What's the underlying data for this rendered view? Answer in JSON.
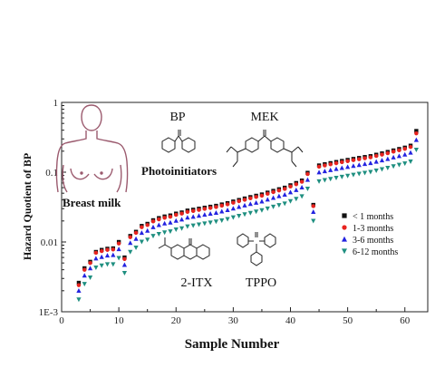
{
  "chart_data": {
    "type": "scatter",
    "xlabel": "Sample Number",
    "ylabel": "Hazard Quotient of BP",
    "xlim": [
      0,
      64
    ],
    "ylim": [
      0.001,
      1
    ],
    "yscale": "log",
    "x_ticks": [
      0,
      10,
      20,
      30,
      40,
      50,
      60
    ],
    "x_tick_labels": [
      "0",
      "10",
      "20",
      "30",
      "40",
      "50",
      "60"
    ],
    "y_ticks": [
      0.001,
      0.01,
      0.1,
      1
    ],
    "y_tick_labels": [
      "1E-3",
      "0.01",
      "0.1",
      "1"
    ],
    "legend_position": "right-middle",
    "x": [
      3,
      4,
      5,
      6,
      7,
      8,
      9,
      10,
      11,
      12,
      13,
      14,
      15,
      16,
      17,
      18,
      19,
      20,
      21,
      22,
      23,
      24,
      25,
      26,
      27,
      28,
      29,
      30,
      31,
      32,
      33,
      34,
      35,
      36,
      37,
      38,
      39,
      40,
      41,
      42,
      43,
      44,
      45,
      46,
      47,
      48,
      49,
      50,
      51,
      52,
      53,
      54,
      55,
      56,
      57,
      58,
      59,
      60,
      61,
      62
    ],
    "series": [
      {
        "name": "< 1 months",
        "marker": "square",
        "color": "#111111",
        "values": [
          0.0026,
          0.0042,
          0.0052,
          0.0072,
          0.0077,
          0.008,
          0.0081,
          0.01,
          0.006,
          0.0122,
          0.014,
          0.017,
          0.0182,
          0.0205,
          0.022,
          0.0232,
          0.024,
          0.0255,
          0.0265,
          0.0282,
          0.029,
          0.03,
          0.031,
          0.032,
          0.033,
          0.0345,
          0.036,
          0.038,
          0.04,
          0.042,
          0.044,
          0.046,
          0.048,
          0.051,
          0.054,
          0.057,
          0.06,
          0.065,
          0.07,
          0.076,
          0.098,
          0.034,
          0.125,
          0.13,
          0.135,
          0.14,
          0.145,
          0.15,
          0.155,
          0.16,
          0.165,
          0.17,
          0.178,
          0.186,
          0.195,
          0.205,
          0.215,
          0.225,
          0.24,
          0.39
        ]
      },
      {
        "name": "1-3 months",
        "marker": "circle",
        "color": "#e8231f",
        "values": [
          0.0024,
          0.004,
          0.005,
          0.007,
          0.0074,
          0.0077,
          0.0078,
          0.0095,
          0.0057,
          0.0117,
          0.0135,
          0.0163,
          0.0175,
          0.0197,
          0.0211,
          0.0222,
          0.023,
          0.0245,
          0.0255,
          0.027,
          0.0278,
          0.0288,
          0.0298,
          0.0307,
          0.0317,
          0.0331,
          0.0346,
          0.0365,
          0.0384,
          0.0403,
          0.0422,
          0.0442,
          0.0461,
          0.049,
          0.0518,
          0.0547,
          0.0576,
          0.0624,
          0.0672,
          0.073,
          0.094,
          0.0326,
          0.12,
          0.125,
          0.1296,
          0.1344,
          0.1392,
          0.144,
          0.1488,
          0.1536,
          0.1584,
          0.1632,
          0.171,
          0.1785,
          0.187,
          0.197,
          0.206,
          0.216,
          0.23,
          0.36
        ]
      },
      {
        "name": "3-6 months",
        "marker": "triangle-up",
        "color": "#2323e0",
        "values": [
          0.002,
          0.0033,
          0.0042,
          0.0058,
          0.0061,
          0.0064,
          0.0065,
          0.0079,
          0.0047,
          0.0097,
          0.0111,
          0.0135,
          0.0145,
          0.0163,
          0.0175,
          0.0184,
          0.019,
          0.0202,
          0.021,
          0.0224,
          0.023,
          0.0238,
          0.0246,
          0.0254,
          0.0262,
          0.0274,
          0.0286,
          0.0302,
          0.0318,
          0.0334,
          0.035,
          0.0365,
          0.0381,
          0.0405,
          0.0429,
          0.0453,
          0.0476,
          0.0516,
          0.0556,
          0.0604,
          0.0778,
          0.027,
          0.0993,
          0.1032,
          0.1072,
          0.1112,
          0.1151,
          0.1191,
          0.1231,
          0.127,
          0.131,
          0.135,
          0.1413,
          0.1477,
          0.1548,
          0.1628,
          0.1707,
          0.1786,
          0.1906,
          0.29
        ]
      },
      {
        "name": "6-12 months",
        "marker": "triangle-down",
        "color": "#1f8f80",
        "values": [
          0.0015,
          0.0025,
          0.0031,
          0.0043,
          0.0046,
          0.0048,
          0.0048,
          0.0059,
          0.0036,
          0.0072,
          0.0083,
          0.0101,
          0.0108,
          0.0122,
          0.013,
          0.0137,
          0.0142,
          0.0151,
          0.0157,
          0.0167,
          0.0172,
          0.0178,
          0.0184,
          0.019,
          0.0196,
          0.0204,
          0.0213,
          0.0225,
          0.0237,
          0.0249,
          0.0261,
          0.0273,
          0.0285,
          0.0302,
          0.032,
          0.0338,
          0.0356,
          0.0385,
          0.0415,
          0.0451,
          0.0581,
          0.0201,
          0.0741,
          0.0771,
          0.08,
          0.083,
          0.086,
          0.0889,
          0.0919,
          0.0949,
          0.0978,
          0.1008,
          0.1055,
          0.1103,
          0.1156,
          0.1216,
          0.1275,
          0.1335,
          0.1423,
          0.21
        ]
      }
    ],
    "annotations": [
      "Breast milk",
      "Photoinitiators",
      "BP",
      "MEK",
      "2-ITX",
      "TPPO"
    ]
  },
  "icons": {
    "body_outline": "breast-milk-torso-icon",
    "bp_structure": "benzophenone-structure-icon",
    "mek_structure": "michlers-ethyl-ketone-structure-icon",
    "itx_structure": "isopropylthioxanthone-structure-icon",
    "tppo_structure": "triphenylphosphine-oxide-structure-icon"
  },
  "colors": {
    "torso": "#9b5a6e"
  }
}
